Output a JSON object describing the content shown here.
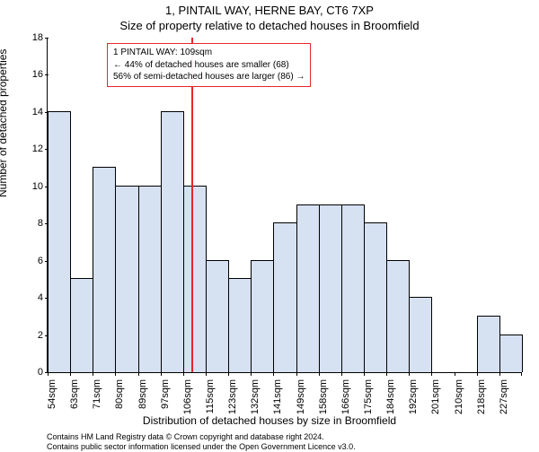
{
  "title_line1": "1, PINTAIL WAY, HERNE BAY, CT6 7XP",
  "title_line2": "Size of property relative to detached houses in Broomfield",
  "ylabel": "Number of detached properties",
  "xlabel": "Distribution of detached houses by size in Broomfield",
  "attribution_line1": "Contains HM Land Registry data © Crown copyright and database right 2024.",
  "attribution_line2": "Contains public sector information licensed under the Open Government Licence v3.0.",
  "chart": {
    "type": "histogram",
    "ylim": [
      0,
      18
    ],
    "ytick_step": 2,
    "yticks": [
      0,
      2,
      4,
      6,
      8,
      10,
      12,
      14,
      16,
      18
    ],
    "xtick_labels": [
      "54sqm",
      "63sqm",
      "71sqm",
      "80sqm",
      "89sqm",
      "97sqm",
      "106sqm",
      "115sqm",
      "123sqm",
      "132sqm",
      "141sqm",
      "149sqm",
      "158sqm",
      "166sqm",
      "175sqm",
      "184sqm",
      "192sqm",
      "201sqm",
      "210sqm",
      "218sqm",
      "227sqm"
    ],
    "values": [
      14,
      5,
      11,
      10,
      10,
      14,
      10,
      6,
      5,
      6,
      8,
      9,
      9,
      9,
      8,
      6,
      4,
      0,
      0,
      3,
      2
    ],
    "bar_fill": "#d6e1f2",
    "bar_stroke": "#000000",
    "background": "#ffffff",
    "vline_color": "#e8262a",
    "vline_after_index": 6,
    "annotation": {
      "border_color": "#e8262a",
      "line1": "1 PINTAIL WAY: 109sqm",
      "line2": "← 44% of detached houses are smaller (68)",
      "line3": "56% of semi-detached houses are larger (86) →"
    }
  }
}
